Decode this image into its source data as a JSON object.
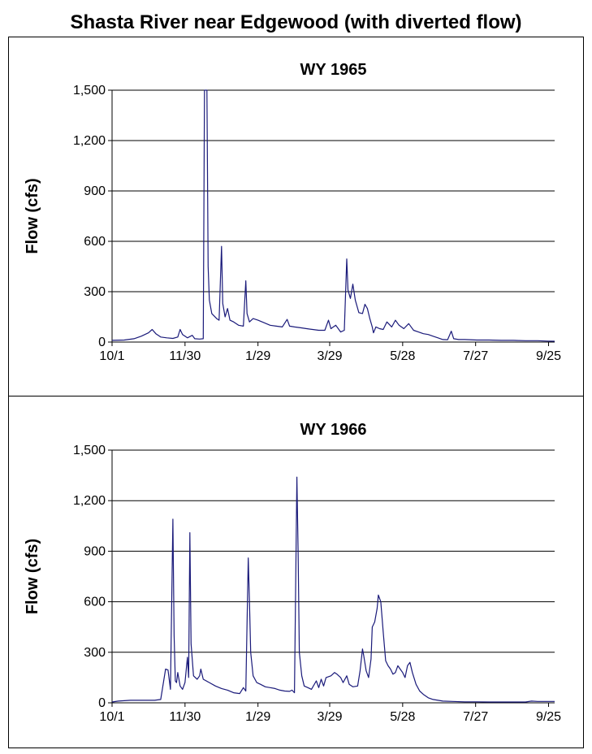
{
  "title": "Shasta River near Edgewood (with diverted flow)",
  "colors": {
    "series": "#1a1a7a",
    "grid": "#000000",
    "frame": "#000000"
  },
  "chart_data": [
    {
      "type": "line",
      "title": "WY 1965",
      "ylabel": "Flow (cfs)",
      "xlabel": "",
      "ylim": [
        0,
        1500
      ],
      "yticks": [
        "0",
        "300",
        "600",
        "900",
        "1,200",
        "1,500"
      ],
      "xticks": [
        "10/1",
        "11/30",
        "1/29",
        "3/29",
        "5/28",
        "7/27",
        "9/25"
      ],
      "x_unit": "day of water year (10/1 = 0)",
      "grid": "horizontal",
      "series": [
        {
          "points": [
            [
              0,
              10
            ],
            [
              10,
              12
            ],
            [
              18,
              20
            ],
            [
              24,
              35
            ],
            [
              30,
              55
            ],
            [
              33,
              75
            ],
            [
              36,
              50
            ],
            [
              40,
              30
            ],
            [
              45,
              25
            ],
            [
              50,
              22
            ],
            [
              54,
              30
            ],
            [
              56,
              75
            ],
            [
              58,
              45
            ],
            [
              62,
              25
            ],
            [
              66,
              40
            ],
            [
              68,
              20
            ],
            [
              72,
              18
            ],
            [
              75,
              20
            ],
            [
              76,
              1500
            ],
            [
              78,
              1500
            ],
            [
              79,
              450
            ],
            [
              80,
              250
            ],
            [
              82,
              170
            ],
            [
              86,
              140
            ],
            [
              88,
              130
            ],
            [
              90,
              570
            ],
            [
              91,
              230
            ],
            [
              93,
              150
            ],
            [
              95,
              200
            ],
            [
              97,
              130
            ],
            [
              100,
              120
            ],
            [
              104,
              100
            ],
            [
              108,
              95
            ],
            [
              110,
              365
            ],
            [
              111,
              170
            ],
            [
              113,
              120
            ],
            [
              116,
              140
            ],
            [
              120,
              130
            ],
            [
              125,
              115
            ],
            [
              130,
              100
            ],
            [
              135,
              95
            ],
            [
              140,
              90
            ],
            [
              144,
              135
            ],
            [
              146,
              95
            ],
            [
              150,
              90
            ],
            [
              155,
              85
            ],
            [
              160,
              80
            ],
            [
              165,
              75
            ],
            [
              170,
              70
            ],
            [
              175,
              70
            ],
            [
              178,
              130
            ],
            [
              180,
              80
            ],
            [
              184,
              100
            ],
            [
              188,
              60
            ],
            [
              191,
              70
            ],
            [
              193,
              495
            ],
            [
              194,
              310
            ],
            [
              196,
              260
            ],
            [
              198,
              345
            ],
            [
              200,
              250
            ],
            [
              203,
              175
            ],
            [
              206,
              170
            ],
            [
              208,
              225
            ],
            [
              210,
              200
            ],
            [
              212,
              140
            ],
            [
              214,
              90
            ],
            [
              215,
              55
            ],
            [
              217,
              90
            ],
            [
              220,
              80
            ],
            [
              223,
              75
            ],
            [
              226,
              120
            ],
            [
              230,
              90
            ],
            [
              233,
              130
            ],
            [
              236,
              100
            ],
            [
              240,
              80
            ],
            [
              244,
              110
            ],
            [
              248,
              70
            ],
            [
              252,
              60
            ],
            [
              256,
              50
            ],
            [
              260,
              45
            ],
            [
              264,
              35
            ],
            [
              268,
              25
            ],
            [
              272,
              15
            ],
            [
              276,
              14
            ],
            [
              279,
              65
            ],
            [
              281,
              20
            ],
            [
              285,
              15
            ],
            [
              290,
              15
            ],
            [
              300,
              12
            ],
            [
              310,
              12
            ],
            [
              320,
              10
            ],
            [
              330,
              10
            ],
            [
              340,
              8
            ],
            [
              350,
              8
            ],
            [
              358,
              6
            ],
            [
              364,
              5
            ]
          ]
        }
      ]
    },
    {
      "type": "line",
      "title": "WY 1966",
      "ylabel": "Flow (cfs)",
      "xlabel": "",
      "ylim": [
        0,
        1500
      ],
      "yticks": [
        "0",
        "300",
        "600",
        "900",
        "1,200",
        "1,500"
      ],
      "xticks": [
        "10/1",
        "11/30",
        "1/29",
        "3/29",
        "5/28",
        "7/27",
        "9/25"
      ],
      "x_unit": "day of water year (10/1 = 0)",
      "grid": "horizontal",
      "series": [
        {
          "points": [
            [
              0,
              5
            ],
            [
              5,
              10
            ],
            [
              15,
              15
            ],
            [
              25,
              15
            ],
            [
              35,
              15
            ],
            [
              40,
              20
            ],
            [
              44,
              200
            ],
            [
              46,
              195
            ],
            [
              48,
              80
            ],
            [
              50,
              1090
            ],
            [
              51,
              400
            ],
            [
              52,
              130
            ],
            [
              53,
              120
            ],
            [
              54,
              180
            ],
            [
              56,
              100
            ],
            [
              58,
              80
            ],
            [
              60,
              120
            ],
            [
              62,
              270
            ],
            [
              63,
              150
            ],
            [
              64,
              1010
            ],
            [
              65,
              350
            ],
            [
              67,
              160
            ],
            [
              70,
              140
            ],
            [
              72,
              160
            ],
            [
              73,
              200
            ],
            [
              75,
              140
            ],
            [
              80,
              120
            ],
            [
              85,
              100
            ],
            [
              90,
              85
            ],
            [
              95,
              75
            ],
            [
              100,
              60
            ],
            [
              105,
              55
            ],
            [
              108,
              90
            ],
            [
              110,
              70
            ],
            [
              112,
              860
            ],
            [
              113,
              600
            ],
            [
              114,
              300
            ],
            [
              116,
              160
            ],
            [
              119,
              120
            ],
            [
              122,
              110
            ],
            [
              126,
              95
            ],
            [
              130,
              90
            ],
            [
              134,
              85
            ],
            [
              138,
              75
            ],
            [
              142,
              70
            ],
            [
              146,
              68
            ],
            [
              148,
              75
            ],
            [
              150,
              60
            ],
            [
              152,
              1340
            ],
            [
              153,
              900
            ],
            [
              154,
              300
            ],
            [
              156,
              160
            ],
            [
              158,
              100
            ],
            [
              161,
              90
            ],
            [
              164,
              80
            ],
            [
              168,
              130
            ],
            [
              170,
              90
            ],
            [
              172,
              140
            ],
            [
              174,
              100
            ],
            [
              176,
              150
            ],
            [
              180,
              160
            ],
            [
              183,
              180
            ],
            [
              185,
              170
            ],
            [
              188,
              150
            ],
            [
              190,
              120
            ],
            [
              193,
              160
            ],
            [
              195,
              110
            ],
            [
              198,
              95
            ],
            [
              202,
              100
            ],
            [
              204,
              190
            ],
            [
              206,
              320
            ],
            [
              207,
              280
            ],
            [
              209,
              190
            ],
            [
              211,
              150
            ],
            [
              213,
              260
            ],
            [
              214,
              450
            ],
            [
              216,
              480
            ],
            [
              218,
              560
            ],
            [
              219,
              640
            ],
            [
              221,
              600
            ],
            [
              223,
              420
            ],
            [
              225,
              250
            ],
            [
              227,
              220
            ],
            [
              229,
              200
            ],
            [
              231,
              170
            ],
            [
              233,
              180
            ],
            [
              235,
              220
            ],
            [
              237,
              200
            ],
            [
              239,
              180
            ],
            [
              241,
              150
            ],
            [
              243,
              220
            ],
            [
              245,
              240
            ],
            [
              247,
              180
            ],
            [
              250,
              110
            ],
            [
              253,
              70
            ],
            [
              256,
              50
            ],
            [
              260,
              30
            ],
            [
              264,
              20
            ],
            [
              268,
              15
            ],
            [
              272,
              10
            ],
            [
              280,
              8
            ],
            [
              290,
              6
            ],
            [
              300,
              6
            ],
            [
              310,
              5
            ],
            [
              320,
              5
            ],
            [
              330,
              5
            ],
            [
              340,
              5
            ],
            [
              345,
              10
            ],
            [
              350,
              8
            ],
            [
              358,
              8
            ],
            [
              364,
              8
            ]
          ]
        }
      ]
    }
  ]
}
